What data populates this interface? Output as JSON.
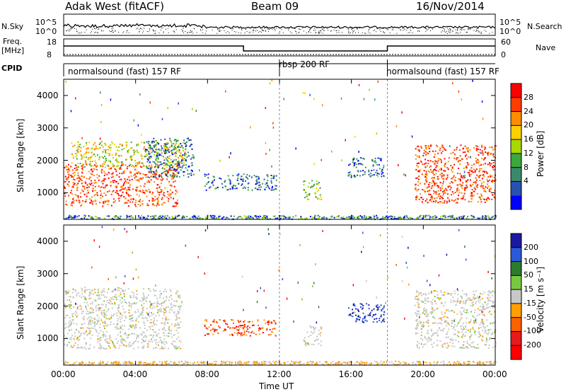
{
  "header": {
    "station": "Adak West (fitACF)",
    "beam": "Beam 09",
    "date": "16/Nov/2014"
  },
  "side_labels": {
    "nsky": "N.Sky",
    "nsearch": "N.Search",
    "freq": "Freq.",
    "freq_unit": "[MHz]",
    "nave": "Nave",
    "cpid": "CPID"
  },
  "noise_panel": {
    "left_ticks": [
      "10^5",
      "10^0"
    ],
    "right_ticks": [
      "10^5",
      "10^0"
    ]
  },
  "freq_panel": {
    "left_ticks": [
      "18",
      "8"
    ],
    "right_ticks": [
      "60",
      "0"
    ]
  },
  "cpid_segments": [
    {
      "label": "normalsound (fast) 157 RF",
      "start_h": 0,
      "end_h": 12
    },
    {
      "label": "rbsp 200 RF",
      "start_h": 12,
      "end_h": 18
    },
    {
      "label": "normalsound (fast) 157 RF",
      "start_h": 18,
      "end_h": 24
    }
  ],
  "axes": {
    "x_ticks": [
      "00:00",
      "04:00",
      "08:00",
      "12:00",
      "16:00",
      "20:00",
      "00:00"
    ],
    "x_label": "Time UT",
    "y_ticks": [
      "1000",
      "2000",
      "3000",
      "4000"
    ],
    "y_label": "Slant Range [km]"
  },
  "power_colorbar": {
    "label": "Power [dB]",
    "ticks": [
      "28",
      "24",
      "20",
      "16",
      "12",
      "8",
      "4"
    ],
    "colors": [
      "#ff0000",
      "#ff3c00",
      "#ff8c00",
      "#ffd000",
      "#a8d800",
      "#3aa83a",
      "#3a8a6a",
      "#2a50b0",
      "#0000ff"
    ]
  },
  "velocity_colorbar": {
    "label": "Velocity [m s⁻¹]",
    "ticks": [
      "200",
      "100",
      "50",
      "15",
      "-15",
      "-50",
      "-100",
      "-200"
    ],
    "colors": [
      "#1a1aa0",
      "#2a5ad8",
      "#2e7a2e",
      "#7ac840",
      "#c8c8c8",
      "#ffa000",
      "#ff6000",
      "#e81a1a",
      "#ff0000"
    ]
  },
  "chart_data": {
    "type": "heatmap",
    "x_range_hours": [
      0,
      24
    ],
    "y_range_km": [
      180,
      4500
    ],
    "power_clumps": [
      {
        "t0": 0.0,
        "t1": 6.3,
        "r0": 600,
        "r1": 1900,
        "level": "high"
      },
      {
        "t0": 0.4,
        "t1": 6.8,
        "r0": 1800,
        "r1": 2600,
        "level": "mid"
      },
      {
        "t0": 4.5,
        "t1": 7.2,
        "r0": 1500,
        "r1": 2700,
        "level": "low"
      },
      {
        "t0": 7.8,
        "t1": 11.8,
        "r0": 1100,
        "r1": 1600,
        "level": "low"
      },
      {
        "t0": 13.3,
        "t1": 14.3,
        "r0": 800,
        "r1": 1400,
        "level": "lowmid"
      },
      {
        "t0": 15.8,
        "t1": 17.8,
        "r0": 1500,
        "r1": 2100,
        "level": "low"
      },
      {
        "t0": 19.5,
        "t1": 24.0,
        "r0": 700,
        "r1": 2500,
        "level": "high"
      }
    ],
    "velocity_clumps": [
      {
        "t0": 0.0,
        "t1": 6.5,
        "r0": 700,
        "r1": 2600,
        "sign": "near_zero"
      },
      {
        "t0": 7.8,
        "t1": 11.8,
        "r0": 1100,
        "r1": 1600,
        "sign": "negative"
      },
      {
        "t0": 13.3,
        "t1": 14.3,
        "r0": 800,
        "r1": 1400,
        "sign": "near_zero"
      },
      {
        "t0": 15.8,
        "t1": 17.8,
        "r0": 1500,
        "r1": 2100,
        "sign": "positive"
      },
      {
        "t0": 19.5,
        "t1": 24.0,
        "r0": 700,
        "r1": 2500,
        "sign": "near_zero"
      }
    ]
  }
}
